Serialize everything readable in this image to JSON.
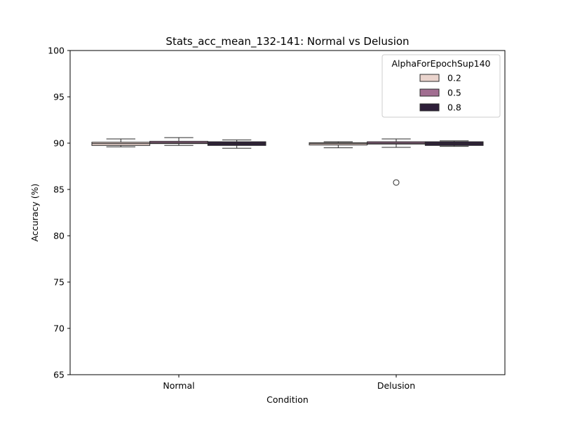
{
  "chart_data": {
    "type": "box",
    "title": "Stats_acc_mean_132-141: Normal vs Delusion",
    "xlabel": "Condition",
    "ylabel": "Accuracy (%)",
    "ylim": [
      65,
      100
    ],
    "yticks": [
      65,
      70,
      75,
      80,
      85,
      90,
      95,
      100
    ],
    "categories": [
      "Normal",
      "Delusion"
    ],
    "legend": {
      "title": "AlphaForEpochSup140",
      "position": "top-right",
      "entries": [
        "0.2",
        "0.5",
        "0.8"
      ]
    },
    "grid": false,
    "series": [
      {
        "name": "0.2",
        "color": "#ead4cd",
        "boxes": [
          {
            "category": "Normal",
            "whislo": 89.6,
            "q1": 89.75,
            "med": 89.95,
            "q3": 90.1,
            "whishi": 90.45,
            "fliers": []
          },
          {
            "category": "Delusion",
            "whislo": 89.5,
            "q1": 89.8,
            "med": 89.95,
            "q3": 90.05,
            "whishi": 90.15,
            "fliers": []
          }
        ]
      },
      {
        "name": "0.5",
        "color": "#a16e91",
        "boxes": [
          {
            "category": "Normal",
            "whislo": 89.75,
            "q1": 89.95,
            "med": 90.05,
            "q3": 90.2,
            "whishi": 90.6,
            "fliers": []
          },
          {
            "category": "Delusion",
            "whislo": 89.55,
            "q1": 89.9,
            "med": 90.0,
            "q3": 90.15,
            "whishi": 90.45,
            "fliers": [
              85.75
            ]
          }
        ]
      },
      {
        "name": "0.8",
        "color": "#2e1f3a",
        "boxes": [
          {
            "category": "Normal",
            "whislo": 89.45,
            "q1": 89.75,
            "med": 89.95,
            "q3": 90.15,
            "whishi": 90.35,
            "fliers": []
          },
          {
            "category": "Delusion",
            "whislo": 89.65,
            "q1": 89.75,
            "med": 89.95,
            "q3": 90.15,
            "whishi": 90.25,
            "fliers": []
          }
        ]
      }
    ]
  }
}
